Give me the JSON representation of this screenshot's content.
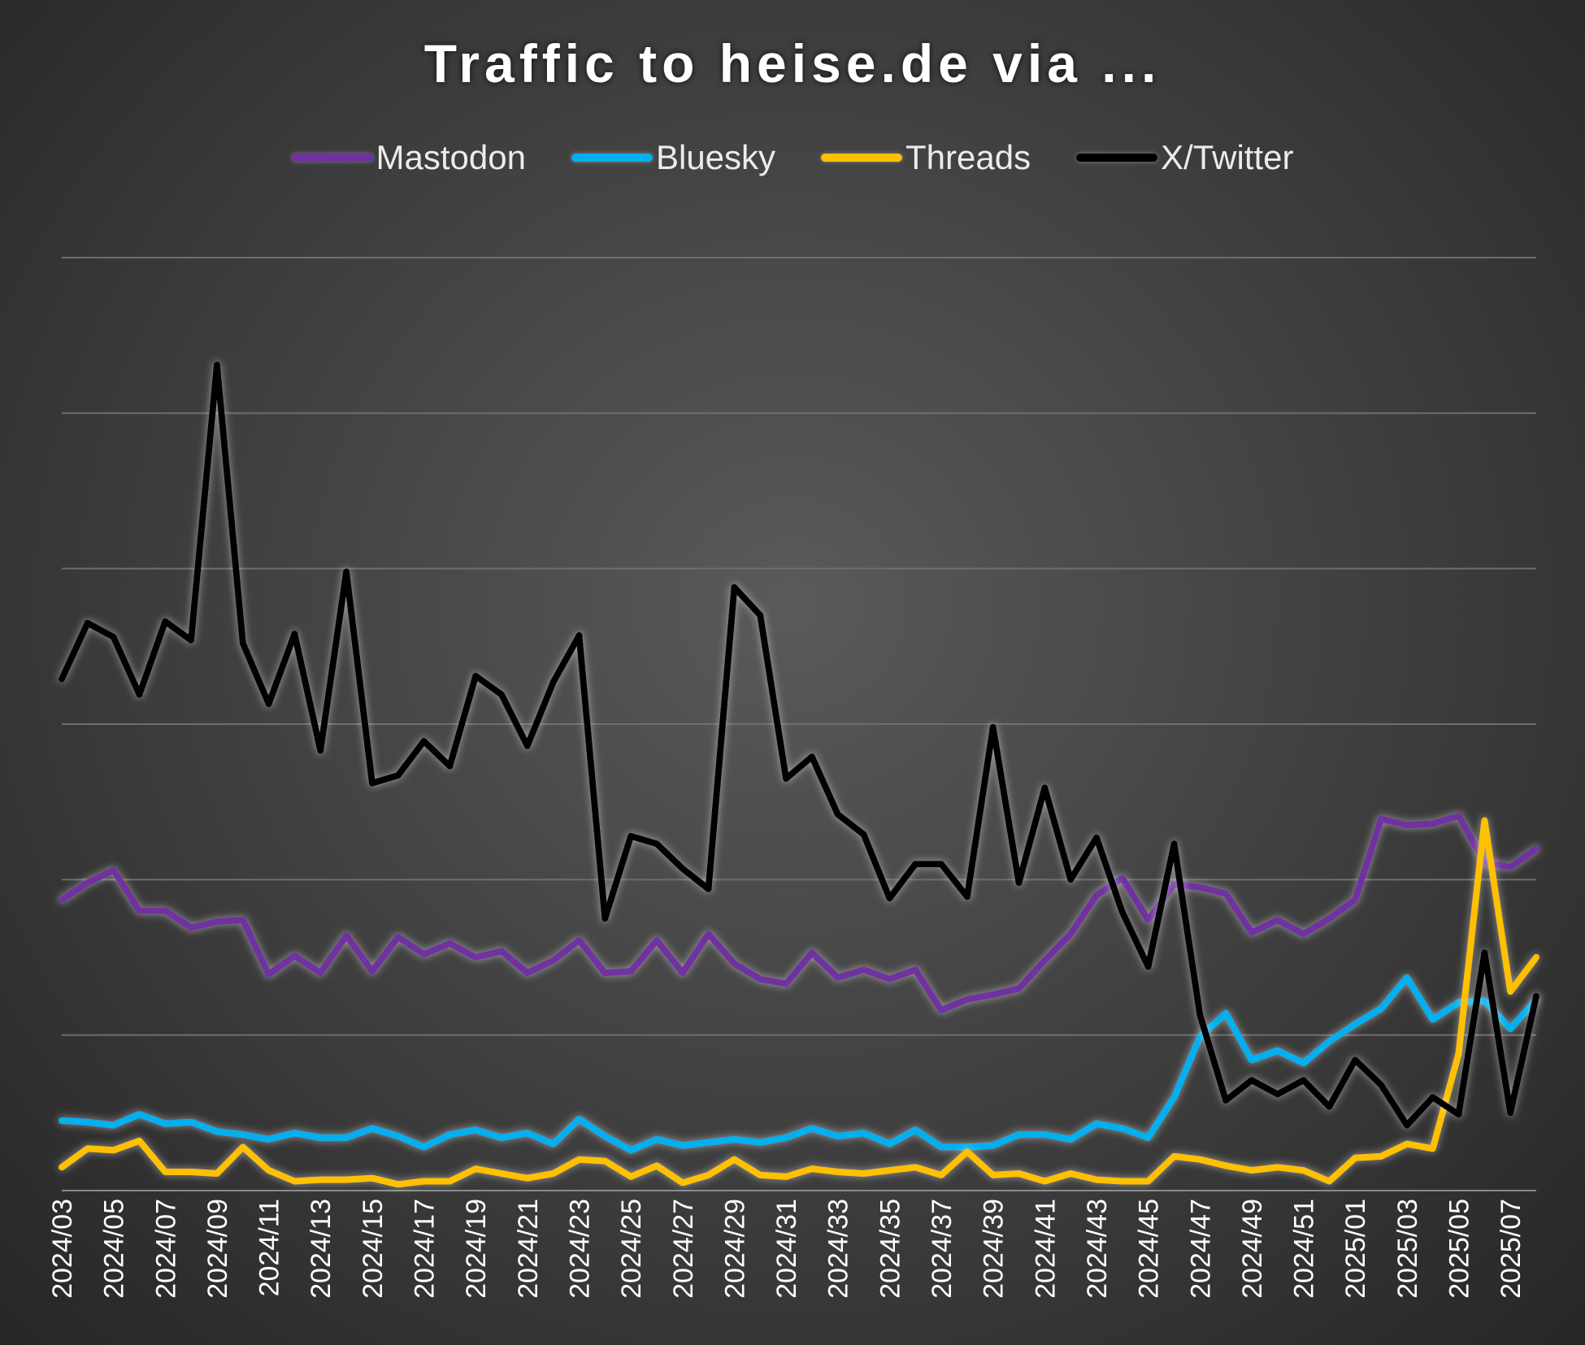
{
  "chart_data": {
    "type": "line",
    "title": "Traffic to heise.de via ...",
    "xlabel": "",
    "ylabel": "",
    "ylim": [
      0,
      600
    ],
    "y_gridlines": [
      0,
      100,
      200,
      300,
      400,
      500,
      600
    ],
    "y_tick_labels_shown": false,
    "grid": true,
    "legend_position": "top",
    "categories": [
      "2024/03",
      "2024/04",
      "2024/05",
      "2024/06",
      "2024/07",
      "2024/08",
      "2024/09",
      "2024/10",
      "2024/11",
      "2024/12",
      "2024/13",
      "2024/14",
      "2024/15",
      "2024/16",
      "2024/17",
      "2024/18",
      "2024/19",
      "2024/20",
      "2024/21",
      "2024/22",
      "2024/23",
      "2024/24",
      "2024/25",
      "2024/26",
      "2024/27",
      "2024/28",
      "2024/29",
      "2024/30",
      "2024/31",
      "2024/32",
      "2024/33",
      "2024/34",
      "2024/35",
      "2024/36",
      "2024/37",
      "2024/38",
      "2024/39",
      "2024/40",
      "2024/41",
      "2024/42",
      "2024/43",
      "2024/44",
      "2024/45",
      "2024/46",
      "2024/47",
      "2024/48",
      "2024/49",
      "2024/50",
      "2024/51",
      "2024/52",
      "2025/01",
      "2025/02",
      "2025/03",
      "2025/04",
      "2025/05",
      "2025/06",
      "2025/07",
      "2025/08"
    ],
    "tick_labels": [
      "2024/03",
      "2024/05",
      "2024/07",
      "2024/09",
      "2024/11",
      "2024/13",
      "2024/15",
      "2024/17",
      "2024/19",
      "2024/21",
      "2024/23",
      "2024/25",
      "2024/27",
      "2024/29",
      "2024/31",
      "2024/33",
      "2024/35",
      "2024/37",
      "2024/39",
      "2024/41",
      "2024/43",
      "2024/45",
      "2024/47",
      "2024/49",
      "2024/51",
      "2025/01",
      "2025/03",
      "2025/05",
      "2025/07"
    ],
    "series": [
      {
        "name": "Mastodon",
        "color": "#7030a0",
        "values": [
          187,
          198,
          206,
          180,
          180,
          169,
          173,
          174,
          139,
          151,
          140,
          164,
          141,
          163,
          152,
          159,
          150,
          154,
          140,
          148,
          161,
          140,
          141,
          161,
          140,
          165,
          146,
          136,
          133,
          153,
          137,
          142,
          136,
          142,
          116,
          123,
          126,
          130,
          148,
          165,
          190,
          201,
          174,
          197,
          195,
          191,
          166,
          174,
          165,
          175,
          187,
          239,
          235,
          236,
          241,
          211,
          208,
          220
        ]
      },
      {
        "name": "Bluesky",
        "color": "#00b0f0",
        "values": [
          45,
          44,
          42,
          49,
          43,
          44,
          38,
          36,
          33,
          37,
          34,
          34,
          40,
          35,
          28,
          36,
          39,
          34,
          37,
          30,
          46,
          35,
          26,
          33,
          29,
          31,
          33,
          31,
          34,
          40,
          35,
          37,
          30,
          39,
          28,
          28,
          29,
          36,
          36,
          33,
          43,
          40,
          34,
          60,
          99,
          114,
          84,
          90,
          82,
          96,
          107,
          117,
          137,
          110,
          121,
          122,
          104,
          123
        ]
      },
      {
        "name": "Threads",
        "color": "#ffc000",
        "values": [
          15,
          27,
          26,
          32,
          12,
          12,
          11,
          28,
          13,
          6,
          7,
          7,
          8,
          4,
          6,
          6,
          14,
          11,
          8,
          11,
          20,
          19,
          9,
          16,
          5,
          10,
          20,
          10,
          9,
          14,
          12,
          11,
          13,
          15,
          10,
          25,
          10,
          11,
          6,
          11,
          7,
          6,
          6,
          22,
          20,
          16,
          13,
          15,
          13,
          6,
          21,
          22,
          30,
          27,
          88,
          238,
          128,
          150
        ]
      },
      {
        "name": "X/Twitter",
        "color": "#000000",
        "values": [
          329,
          365,
          356,
          319,
          366,
          354,
          531,
          352,
          313,
          358,
          283,
          398,
          262,
          267,
          289,
          273,
          331,
          319,
          286,
          327,
          357,
          175,
          228,
          223,
          207,
          194,
          388,
          370,
          265,
          279,
          242,
          229,
          188,
          210,
          210,
          189,
          298,
          198,
          259,
          200,
          227,
          179,
          144,
          223,
          113,
          58,
          71,
          62,
          71,
          54,
          84,
          68,
          42,
          60,
          49,
          153,
          50,
          125
        ]
      }
    ]
  }
}
